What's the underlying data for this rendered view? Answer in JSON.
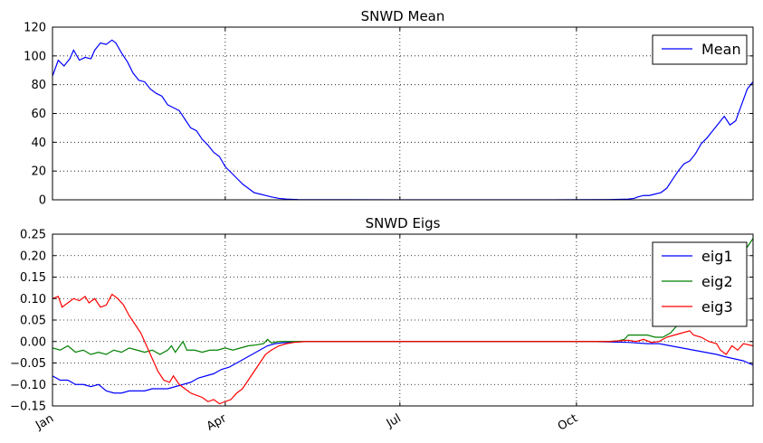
{
  "chart_data": [
    {
      "type": "line",
      "title": "SNWD Mean",
      "xlabel": "",
      "ylabel": "",
      "xlim": [
        0,
        365
      ],
      "ylim": [
        0,
        120
      ],
      "yticks": [
        0,
        20,
        40,
        60,
        80,
        100,
        120
      ],
      "ytick_labels": [
        "0",
        "20",
        "40",
        "60",
        "80",
        "100",
        "120"
      ],
      "xticks": [
        0,
        90,
        181,
        273
      ],
      "xtick_labels": [
        "Jan",
        "Apr",
        "Jul",
        "Oct"
      ],
      "grid": true,
      "legend_position": "top-right",
      "series": [
        {
          "name": "Mean",
          "color": "#0000ff",
          "points": [
            [
              0,
              86
            ],
            [
              3,
              97
            ],
            [
              6,
              93
            ],
            [
              9,
              98
            ],
            [
              11,
              104
            ],
            [
              14,
              97
            ],
            [
              17,
              99
            ],
            [
              20,
              98
            ],
            [
              22,
              104
            ],
            [
              25,
              109
            ],
            [
              28,
              108
            ],
            [
              31,
              111
            ],
            [
              33,
              109
            ],
            [
              36,
              102
            ],
            [
              39,
              96
            ],
            [
              42,
              88
            ],
            [
              45,
              83
            ],
            [
              48,
              82
            ],
            [
              51,
              77
            ],
            [
              54,
              74
            ],
            [
              57,
              72
            ],
            [
              60,
              66
            ],
            [
              63,
              64
            ],
            [
              66,
              62
            ],
            [
              69,
              56
            ],
            [
              72,
              50
            ],
            [
              75,
              48
            ],
            [
              78,
              42
            ],
            [
              81,
              38
            ],
            [
              84,
              33
            ],
            [
              87,
              30
            ],
            [
              90,
              23
            ],
            [
              93,
              19
            ],
            [
              96,
              15
            ],
            [
              99,
              11
            ],
            [
              102,
              8
            ],
            [
              105,
              5
            ],
            [
              108,
              4
            ],
            [
              111,
              3
            ],
            [
              114,
              2
            ],
            [
              118,
              1
            ],
            [
              122,
              0.5
            ],
            [
              128,
              0.2
            ],
            [
              140,
              0.1
            ],
            [
              180,
              0
            ],
            [
              220,
              0
            ],
            [
              260,
              0
            ],
            [
              290,
              0.2
            ],
            [
              300,
              0.5
            ],
            [
              303,
              1
            ],
            [
              305,
              2
            ],
            [
              308,
              3
            ],
            [
              311,
              3
            ],
            [
              314,
              4
            ],
            [
              317,
              5
            ],
            [
              320,
              8
            ],
            [
              323,
              14
            ],
            [
              326,
              20
            ],
            [
              329,
              25
            ],
            [
              332,
              27
            ],
            [
              335,
              32
            ],
            [
              338,
              39
            ],
            [
              341,
              43
            ],
            [
              344,
              48
            ],
            [
              347,
              53
            ],
            [
              350,
              58
            ],
            [
              353,
              52
            ],
            [
              356,
              55
            ],
            [
              359,
              66
            ],
            [
              362,
              77
            ],
            [
              365,
              82
            ]
          ]
        }
      ]
    },
    {
      "type": "line",
      "title": "SNWD Eigs",
      "xlabel": "",
      "ylabel": "",
      "xlim": [
        0,
        365
      ],
      "ylim": [
        -0.15,
        0.25
      ],
      "yticks": [
        -0.15,
        -0.1,
        -0.05,
        0.0,
        0.05,
        0.1,
        0.15,
        0.2,
        0.25
      ],
      "ytick_labels": [
        "−0.15",
        "−0.10",
        "−0.05",
        "0.00",
        "0.05",
        "0.10",
        "0.15",
        "0.20",
        "0.25"
      ],
      "xticks": [
        0,
        90,
        181,
        273
      ],
      "xtick_labels": [
        "Jan",
        "Apr",
        "Jul",
        "Oct"
      ],
      "grid": true,
      "legend_position": "top-right",
      "series": [
        {
          "name": "eig1",
          "color": "#0000ff",
          "points": [
            [
              0,
              -0.08
            ],
            [
              4,
              -0.09
            ],
            [
              8,
              -0.09
            ],
            [
              12,
              -0.1
            ],
            [
              16,
              -0.1
            ],
            [
              20,
              -0.105
            ],
            [
              24,
              -0.1
            ],
            [
              28,
              -0.115
            ],
            [
              32,
              -0.12
            ],
            [
              36,
              -0.12
            ],
            [
              40,
              -0.115
            ],
            [
              44,
              -0.115
            ],
            [
              48,
              -0.115
            ],
            [
              52,
              -0.11
            ],
            [
              56,
              -0.11
            ],
            [
              60,
              -0.11
            ],
            [
              64,
              -0.105
            ],
            [
              68,
              -0.1
            ],
            [
              72,
              -0.095
            ],
            [
              76,
              -0.085
            ],
            [
              80,
              -0.08
            ],
            [
              84,
              -0.075
            ],
            [
              88,
              -0.065
            ],
            [
              92,
              -0.06
            ],
            [
              96,
              -0.05
            ],
            [
              100,
              -0.04
            ],
            [
              104,
              -0.03
            ],
            [
              108,
              -0.02
            ],
            [
              112,
              -0.01
            ],
            [
              116,
              -0.005
            ],
            [
              120,
              -0.003
            ],
            [
              126,
              -0.001
            ],
            [
              132,
              0
            ],
            [
              180,
              0
            ],
            [
              240,
              0
            ],
            [
              280,
              0
            ],
            [
              300,
              -0.002
            ],
            [
              310,
              -0.005
            ],
            [
              316,
              -0.005
            ],
            [
              322,
              -0.01
            ],
            [
              328,
              -0.015
            ],
            [
              334,
              -0.02
            ],
            [
              340,
              -0.025
            ],
            [
              346,
              -0.03
            ],
            [
              350,
              -0.035
            ],
            [
              355,
              -0.04
            ],
            [
              360,
              -0.045
            ],
            [
              365,
              -0.055
            ]
          ]
        },
        {
          "name": "eig2",
          "color": "#008000",
          "points": [
            [
              0,
              -0.015
            ],
            [
              4,
              -0.02
            ],
            [
              8,
              -0.01
            ],
            [
              12,
              -0.025
            ],
            [
              16,
              -0.02
            ],
            [
              20,
              -0.03
            ],
            [
              24,
              -0.025
            ],
            [
              28,
              -0.03
            ],
            [
              32,
              -0.02
            ],
            [
              36,
              -0.025
            ],
            [
              40,
              -0.015
            ],
            [
              44,
              -0.02
            ],
            [
              48,
              -0.025
            ],
            [
              52,
              -0.02
            ],
            [
              56,
              -0.03
            ],
            [
              60,
              -0.02
            ],
            [
              62,
              -0.01
            ],
            [
              64,
              -0.025
            ],
            [
              68,
              0.0
            ],
            [
              70,
              -0.02
            ],
            [
              74,
              -0.02
            ],
            [
              78,
              -0.025
            ],
            [
              82,
              -0.02
            ],
            [
              86,
              -0.02
            ],
            [
              90,
              -0.015
            ],
            [
              94,
              -0.02
            ],
            [
              98,
              -0.015
            ],
            [
              102,
              -0.01
            ],
            [
              106,
              -0.008
            ],
            [
              110,
              -0.005
            ],
            [
              112,
              0.005
            ],
            [
              114,
              -0.003
            ],
            [
              118,
              0.0
            ],
            [
              124,
              0.0
            ],
            [
              180,
              0
            ],
            [
              240,
              0
            ],
            [
              290,
              0
            ],
            [
              295,
              0.002
            ],
            [
              298,
              0.005
            ],
            [
              300,
              0.015
            ],
            [
              306,
              0.015
            ],
            [
              310,
              0.015
            ],
            [
              314,
              0.01
            ],
            [
              318,
              0.01
            ],
            [
              322,
              0.02
            ],
            [
              326,
              0.04
            ],
            [
              330,
              0.06
            ],
            [
              334,
              0.075
            ],
            [
              338,
              0.09
            ],
            [
              342,
              0.11
            ],
            [
              346,
              0.14
            ],
            [
              350,
              0.16
            ],
            [
              354,
              0.19
            ],
            [
              358,
              0.21
            ],
            [
              362,
              0.22
            ],
            [
              365,
              0.24
            ]
          ]
        },
        {
          "name": "eig3",
          "color": "#ff0000",
          "points": [
            [
              0,
              0.1
            ],
            [
              3,
              0.105
            ],
            [
              5,
              0.08
            ],
            [
              8,
              0.09
            ],
            [
              11,
              0.1
            ],
            [
              14,
              0.095
            ],
            [
              17,
              0.105
            ],
            [
              19,
              0.09
            ],
            [
              22,
              0.1
            ],
            [
              25,
              0.08
            ],
            [
              28,
              0.085
            ],
            [
              31,
              0.11
            ],
            [
              34,
              0.1
            ],
            [
              37,
              0.085
            ],
            [
              40,
              0.06
            ],
            [
              43,
              0.04
            ],
            [
              46,
              0.02
            ],
            [
              49,
              -0.01
            ],
            [
              52,
              -0.04
            ],
            [
              55,
              -0.07
            ],
            [
              58,
              -0.09
            ],
            [
              61,
              -0.095
            ],
            [
              63,
              -0.08
            ],
            [
              66,
              -0.1
            ],
            [
              69,
              -0.11
            ],
            [
              72,
              -0.12
            ],
            [
              75,
              -0.125
            ],
            [
              78,
              -0.13
            ],
            [
              81,
              -0.14
            ],
            [
              84,
              -0.135
            ],
            [
              87,
              -0.145
            ],
            [
              90,
              -0.14
            ],
            [
              93,
              -0.135
            ],
            [
              96,
              -0.12
            ],
            [
              99,
              -0.11
            ],
            [
              102,
              -0.09
            ],
            [
              105,
              -0.07
            ],
            [
              108,
              -0.05
            ],
            [
              111,
              -0.03
            ],
            [
              114,
              -0.02
            ],
            [
              118,
              -0.01
            ],
            [
              122,
              -0.005
            ],
            [
              126,
              -0.002
            ],
            [
              132,
              0
            ],
            [
              180,
              0
            ],
            [
              240,
              0
            ],
            [
              290,
              0
            ],
            [
              300,
              0.003
            ],
            [
              304,
              0.0
            ],
            [
              308,
              0.005
            ],
            [
              312,
              -0.002
            ],
            [
              316,
              0.0
            ],
            [
              320,
              0.01
            ],
            [
              324,
              0.015
            ],
            [
              328,
              0.02
            ],
            [
              332,
              0.025
            ],
            [
              334,
              0.015
            ],
            [
              338,
              0.01
            ],
            [
              342,
              0.0
            ],
            [
              346,
              -0.005
            ],
            [
              348,
              -0.02
            ],
            [
              351,
              -0.03
            ],
            [
              354,
              -0.01
            ],
            [
              357,
              -0.02
            ],
            [
              360,
              -0.005
            ],
            [
              365,
              -0.01
            ]
          ]
        }
      ]
    }
  ]
}
